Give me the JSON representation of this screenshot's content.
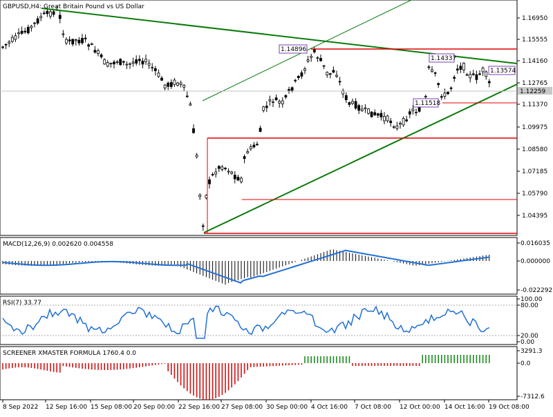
{
  "symbol_title": "GBPUSD,H4: Great Britain Pound vs US Dollar",
  "panels": {
    "macd": {
      "label": "MACD(12,26,9) 0.002620 0.004558",
      "ticks": [
        "0.016035",
        "0.000000",
        "-0.022292"
      ]
    },
    "rsi": {
      "label": "RSI(7) 33.77",
      "ticks": [
        "100.00",
        "80.00",
        "20.00",
        "0.00"
      ]
    },
    "screener": {
      "label": "SCREENER XMASTER FORMULA 1760.4 0.0",
      "ticks": [
        "3291.3",
        "0.0",
        "-7312.6"
      ]
    }
  },
  "price_axis": [
    "1.16950",
    "1.15555",
    "1.14160",
    "1.12765",
    "1.11370",
    "1.09975",
    "1.08580",
    "1.07185",
    "1.05790",
    "1.04395"
  ],
  "current_price": "1.12259",
  "price_labels": [
    "1.14896",
    "1.14337",
    "1.13574",
    "1.11518"
  ],
  "time_axis": [
    "8 Sep 2022",
    "12 Sep 16:00",
    "15 Sep 08:00",
    "20 Sep 00:00",
    "22 Sep 16:00",
    "27 Sep 08:00",
    "30 Sep 00:00",
    "4 Oct 16:00",
    "7 Oct 08:00",
    "12 Oct 00:00",
    "14 Oct 16:00",
    "19 Oct 08:00"
  ],
  "colors": {
    "bull": "#000000",
    "bear": "#000000",
    "trendline": "#0a7a0a",
    "level": "#e00000",
    "macd_line": "#1f6fd6",
    "rsi_line": "#1f6fd6",
    "screener_pos": "#1c8a1c",
    "screener_neg": "#d01010",
    "label_box": "#7b3fb0"
  }
}
